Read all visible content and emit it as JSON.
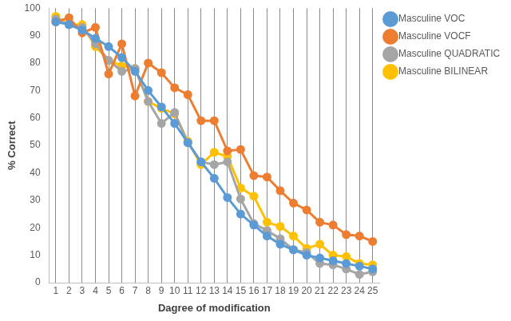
{
  "chart_data": {
    "type": "line",
    "x_label": "Dagree of modification",
    "y_label": "% Correct",
    "categories": [
      "1",
      "2",
      "3",
      "4",
      "5",
      "6",
      "7",
      "8",
      "9",
      "10",
      "11",
      "12",
      "13",
      "14",
      "15",
      "16",
      "17",
      "18",
      "19",
      "20",
      "21",
      "22",
      "23",
      "24",
      "25"
    ],
    "series": [
      {
        "name": "Masculine VOC",
        "color": "#5b9bd5",
        "marker": "circle",
        "line_style": "solid",
        "values": [
          95,
          94,
          92,
          89,
          86,
          82,
          77,
          70,
          64,
          58,
          51,
          44,
          38,
          31,
          25,
          21,
          17,
          14,
          12,
          10,
          9,
          8,
          7,
          6,
          5
        ]
      },
      {
        "name": "Masculine VOCF",
        "color": "#ed7d31",
        "marker": "circle",
        "line_style": "solid",
        "values": [
          95,
          96.5,
          91,
          93,
          76,
          87,
          68,
          80,
          76.5,
          71,
          68.5,
          59,
          59,
          48,
          48.5,
          39,
          38.5,
          33.5,
          29,
          26.5,
          22,
          21,
          17.5,
          17,
          15
        ]
      },
      {
        "name": "Masculine QUADRATIC",
        "color": "#a5a5a5",
        "marker": "circle",
        "line_style": "solid",
        "values": [
          96,
          94,
          93,
          87,
          81,
          77,
          78,
          66,
          58,
          62,
          51,
          44,
          43,
          44,
          30.5,
          21.5,
          19,
          16,
          12,
          11,
          7,
          6.5,
          5,
          3,
          4
        ]
      },
      {
        "name": "Masculine BILINEAR",
        "color": "#ffc000",
        "marker": "circle",
        "line_style": "solid",
        "values": [
          97,
          94,
          94,
          86,
          81,
          79,
          78,
          66,
          63.5,
          61.5,
          51.5,
          43,
          47.5,
          46,
          34.5,
          31.5,
          22,
          20.5,
          17,
          12.5,
          14,
          10,
          9.5,
          7,
          6.5
        ]
      }
    ],
    "ylim": [
      0,
      100
    ],
    "yticks": [
      0,
      10,
      20,
      30,
      40,
      50,
      60,
      70,
      80,
      90,
      100
    ],
    "grid": true,
    "legend": "top-right"
  }
}
